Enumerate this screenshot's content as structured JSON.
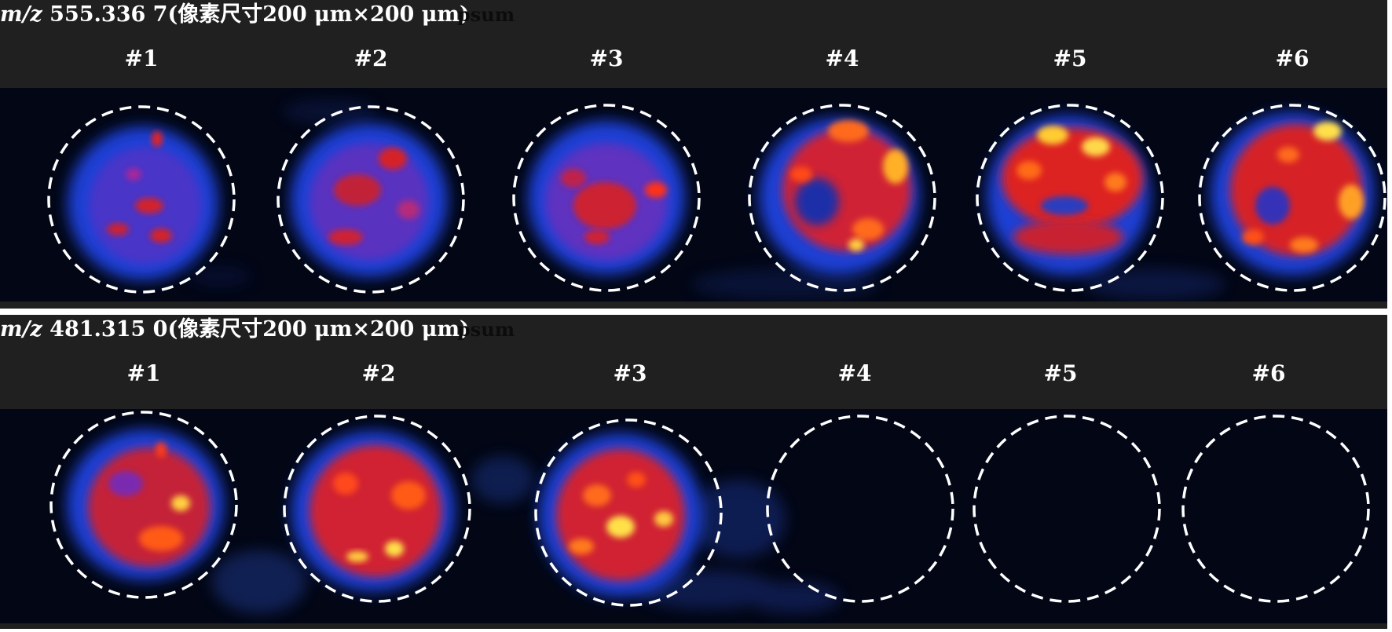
{
  "panels": [
    {
      "id": "top",
      "title_mz": "m/z",
      "title_text": " 555.336 7(像素尺寸200 μm×200 μm)",
      "ghost_text": "psum",
      "sample_labels": [
        "#1",
        "#2",
        "#3",
        "#4",
        "#5",
        "#6"
      ]
    },
    {
      "id": "bottom",
      "title_mz": "m/z",
      "title_text": " 481.315 0(像素尺寸200 μm×200 μm)",
      "ghost_text": "psum",
      "sample_labels": [
        "#1",
        "#2",
        "#3",
        "#4",
        "#5",
        "#6"
      ]
    }
  ],
  "colors": {
    "panel_background": "#1f201f",
    "image_background": "#020615",
    "intensity_low": "#1c3fd6",
    "intensity_mid": "#e8201a",
    "intensity_high": "#ffe04a",
    "circle_outline": "#ffffff"
  },
  "colormap_name": "blue-red-yellow heat map",
  "sample_intensity_top": [
    "medium",
    "medium",
    "medium",
    "high",
    "high",
    "high"
  ],
  "sample_intensity_bottom": [
    "high",
    "high",
    "high",
    "none",
    "none",
    "none"
  ]
}
